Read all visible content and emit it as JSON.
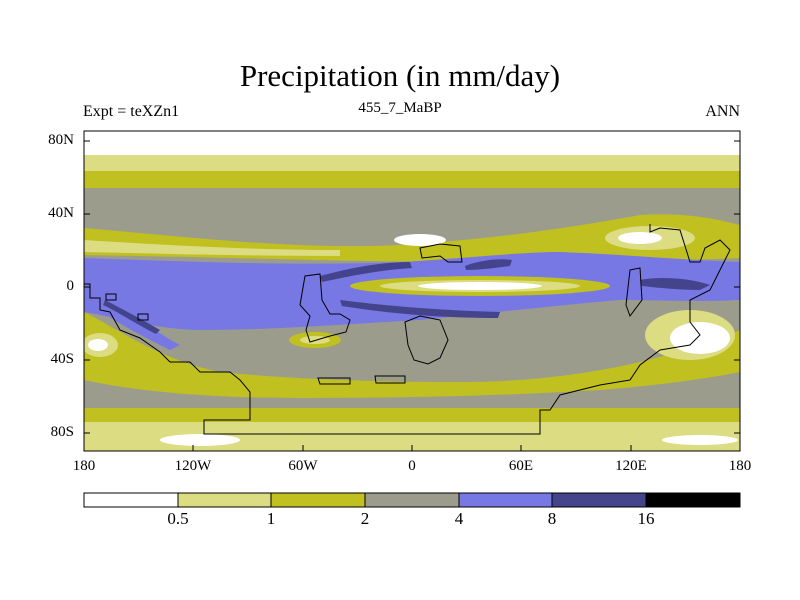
{
  "title": "Precipitation (in mm/day)",
  "left_label": "Expt = teXZn1",
  "center_label": "455_7_MaBP",
  "right_label": "ANN",
  "y_ticks": [
    "80N",
    "40N",
    "0",
    "40S",
    "80S"
  ],
  "x_ticks": [
    "180",
    "120W",
    "60W",
    "0",
    "60E",
    "120E",
    "180"
  ],
  "colorbar": {
    "levels": [
      "0.5",
      "1",
      "2",
      "4",
      "8",
      "16"
    ],
    "colors": [
      "#ffffff",
      "#dcdc82",
      "#c0c020",
      "#9c9c8c",
      "#7878e4",
      "#44448c",
      "#000000"
    ]
  }
}
